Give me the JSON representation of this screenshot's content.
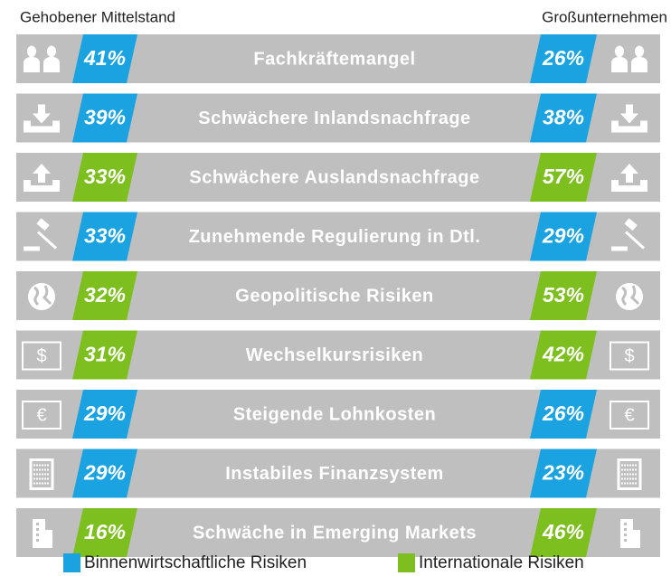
{
  "header": {
    "left": "Gehobener Mittelstand",
    "right": "Großunternehmen"
  },
  "rows": [
    {
      "label": "Fachkräftemangel",
      "left": "41%",
      "right": "26%",
      "color": "#1aa3e0"
    },
    {
      "label": "Schwächere Inlandsnachfrage",
      "left": "39%",
      "right": "38%",
      "color": "#1aa3e0"
    },
    {
      "label": "Schwächere Auslandsnachfrage",
      "left": "33%",
      "right": "57%",
      "color": "#7dbf1f"
    },
    {
      "label": "Zunehmende Regulierung in Dtl.",
      "left": "33%",
      "right": "29%",
      "color": "#1aa3e0"
    },
    {
      "label": "Geopolitische Risiken",
      "left": "32%",
      "right": "53%",
      "color": "#7dbf1f"
    },
    {
      "label": "Wechselkursrisiken",
      "left": "31%",
      "right": "42%",
      "color": "#7dbf1f",
      "symbol": "$"
    },
    {
      "label": "Steigende Lohnkosten",
      "left": "29%",
      "right": "26%",
      "color": "#1aa3e0",
      "symbol": "€"
    },
    {
      "label": "Instabiles Finanzsystem",
      "left": "29%",
      "right": "23%",
      "color": "#1aa3e0"
    },
    {
      "label": "Schwäche in Emerging Markets",
      "left": "16%",
      "right": "46%",
      "color": "#7dbf1f"
    }
  ],
  "legend": [
    {
      "name": "Binnenwirtschaftliche Risiken",
      "color": "#1aa3e0"
    },
    {
      "name": "Internationale Risiken",
      "color": "#7dbf1f"
    }
  ]
}
